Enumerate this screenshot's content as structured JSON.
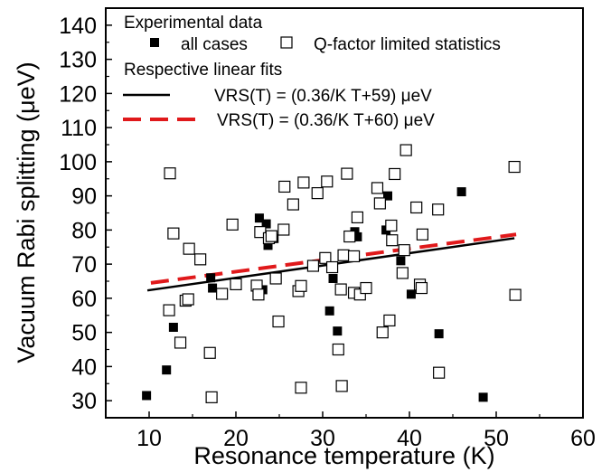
{
  "chart_data": {
    "type": "scatter",
    "xlabel": "Resonance temperature (K)",
    "ylabel": "Vacuum Rabi splitting (μeV)",
    "xlim": [
      5,
      60
    ],
    "ylim": [
      25,
      145
    ],
    "xticks": [
      10,
      20,
      30,
      40,
      50,
      60
    ],
    "yticks": [
      30,
      40,
      50,
      60,
      70,
      80,
      90,
      100,
      110,
      120,
      130,
      140
    ],
    "grid": false,
    "legend_position": "top-left",
    "legend": {
      "header1": "Experimental data",
      "header2": "Respective linear fits"
    },
    "series": [
      {
        "name": "all cases",
        "marker": "filled-square",
        "color": "#000000",
        "points": [
          [
            9.7,
            31.5
          ],
          [
            12,
            39
          ],
          [
            12.8,
            51.5
          ],
          [
            17.1,
            66
          ],
          [
            17.3,
            63
          ],
          [
            22.7,
            83.5
          ],
          [
            23.5,
            81.8
          ],
          [
            23.7,
            75.5
          ],
          [
            24.4,
            77.5
          ],
          [
            23.1,
            62.5
          ],
          [
            30.8,
            56.3
          ],
          [
            31.2,
            65.8
          ],
          [
            31.7,
            50.4
          ],
          [
            33.7,
            79.5
          ],
          [
            34,
            78
          ],
          [
            37.5,
            90
          ],
          [
            37.3,
            80
          ],
          [
            39,
            71
          ],
          [
            40.2,
            61.2
          ],
          [
            43.4,
            49.6
          ],
          [
            46,
            91.2
          ],
          [
            48.5,
            31
          ]
        ]
      },
      {
        "name": "Q-factor limited statistics",
        "marker": "open-square",
        "color": "#000000",
        "points": [
          [
            12.4,
            96.6
          ],
          [
            12.3,
            56.5
          ],
          [
            12.8,
            79
          ],
          [
            13.6,
            47
          ],
          [
            14.2,
            59.3
          ],
          [
            14.6,
            74.5
          ],
          [
            14.5,
            59.7
          ],
          [
            15.9,
            71.4
          ],
          [
            17,
            44
          ],
          [
            17.2,
            31
          ],
          [
            18.4,
            61.3
          ],
          [
            19.6,
            81.6
          ],
          [
            20,
            64.1
          ],
          [
            22.4,
            63.7
          ],
          [
            22.6,
            61.1
          ],
          [
            22.8,
            79.4
          ],
          [
            23.8,
            77.6
          ],
          [
            24.1,
            78.2
          ],
          [
            24.9,
            53.2
          ],
          [
            24.6,
            65.8
          ],
          [
            25.5,
            80.1
          ],
          [
            25.6,
            92.7
          ],
          [
            26.6,
            87.5
          ],
          [
            27.2,
            62.1
          ],
          [
            27.5,
            63.6
          ],
          [
            27.5,
            33.8
          ],
          [
            27.8,
            93.9
          ],
          [
            28.9,
            69.5
          ],
          [
            29.4,
            90.8
          ],
          [
            30.3,
            71.8
          ],
          [
            30.5,
            94.2
          ],
          [
            31.1,
            69.1
          ],
          [
            31.8,
            45
          ],
          [
            32.1,
            62.6
          ],
          [
            32.2,
            34.3
          ],
          [
            32.4,
            72.6
          ],
          [
            32.8,
            96.5
          ],
          [
            33.1,
            78.1
          ],
          [
            33.6,
            72.3
          ],
          [
            33.6,
            61.6
          ],
          [
            34,
            83.7
          ],
          [
            34.3,
            61.1
          ],
          [
            35,
            63
          ],
          [
            36.3,
            92.3
          ],
          [
            36.6,
            87.8
          ],
          [
            36.9,
            50
          ],
          [
            37.7,
            53.5
          ],
          [
            37.9,
            81.3
          ],
          [
            38,
            77
          ],
          [
            38.3,
            96.4
          ],
          [
            39.2,
            67.4
          ],
          [
            39.4,
            74.1
          ],
          [
            39.6,
            103.4
          ],
          [
            40.8,
            86.6
          ],
          [
            41.2,
            64
          ],
          [
            41.4,
            63
          ],
          [
            41.5,
            78.7
          ],
          [
            43.3,
            86
          ],
          [
            43.4,
            38.2
          ],
          [
            52.1,
            98.5
          ],
          [
            52.2,
            61
          ]
        ]
      }
    ],
    "fits": [
      {
        "label": "VRS(T) = (0.36/K T+59) μeV",
        "x": [
          9.8,
          52.1
        ],
        "y": [
          62.3,
          77.6
        ],
        "color": "#000000",
        "dash": "solid"
      },
      {
        "label": "VRS(T) = (0.36/K T+60) μeV",
        "x": [
          10.2,
          52.3
        ],
        "y": [
          64.5,
          78.7
        ],
        "color": "#e0191b",
        "dash": "dashed"
      }
    ]
  }
}
